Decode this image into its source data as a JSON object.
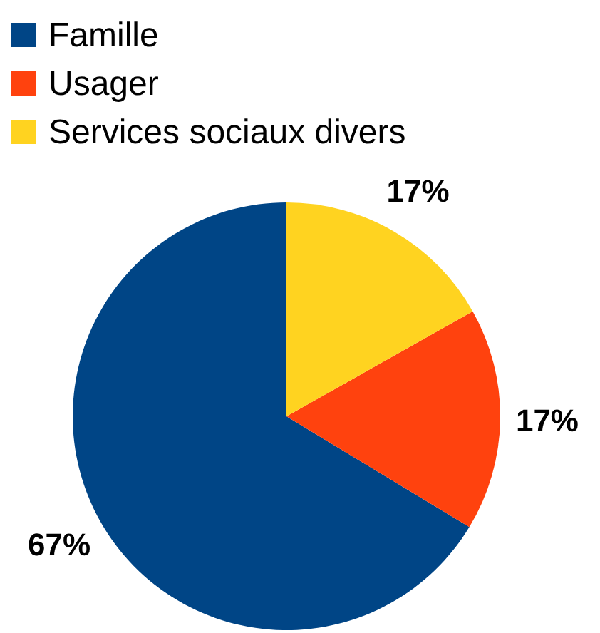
{
  "chart_data": {
    "type": "pie",
    "categories": [
      "Famille",
      "Usager",
      "Services sociaux divers"
    ],
    "values": [
      67,
      17,
      17
    ],
    "colors": [
      "#004586",
      "#ff420e",
      "#ffd320"
    ],
    "value_labels": [
      "67%",
      "17%",
      "17%"
    ],
    "legend": "top left"
  }
}
